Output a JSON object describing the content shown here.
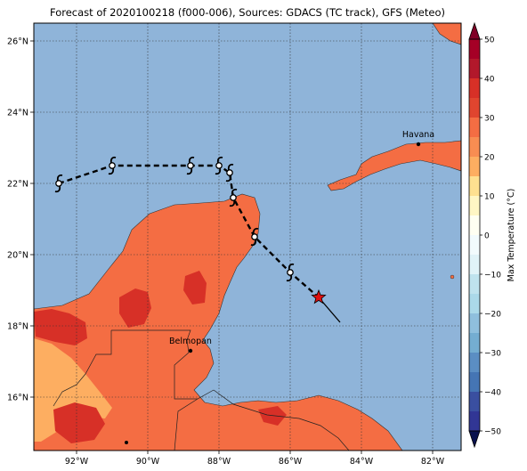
{
  "title": "Forecast of 2020100218 (f000-006), Sources: GDACS (TC track), GFS (Meteo)",
  "map": {
    "lon_range": [
      -93.2,
      -81.2
    ],
    "lat_range": [
      14.5,
      26.5
    ],
    "lon_ticks": [
      -92,
      -90,
      -88,
      -86,
      -84,
      -82
    ],
    "lat_ticks": [
      16,
      18,
      20,
      22,
      24,
      26
    ],
    "lon_tick_labels": [
      "92°W",
      "90°W",
      "88°W",
      "86°W",
      "84°W",
      "82°W"
    ],
    "lat_tick_labels": [
      "16°N",
      "18°N",
      "20°N",
      "22°N",
      "24°N",
      "26°N"
    ],
    "gridlines": true,
    "colors": {
      "ocean": "#8fb4d9",
      "land_base": "#f46d43",
      "land_warm": "#fdae61",
      "land_hot": "#d73027"
    }
  },
  "cities": [
    {
      "name": "Havana",
      "lon": -82.4,
      "lat": 23.1
    },
    {
      "name": "Belmopan",
      "lon": -88.8,
      "lat": 17.3
    }
  ],
  "track": {
    "points": [
      {
        "lon": -92.5,
        "lat": 22.0
      },
      {
        "lon": -91.0,
        "lat": 22.5
      },
      {
        "lon": -88.8,
        "lat": 22.5
      },
      {
        "lon": -88.0,
        "lat": 22.5
      },
      {
        "lon": -87.7,
        "lat": 22.3
      },
      {
        "lon": -87.6,
        "lat": 21.6
      },
      {
        "lon": -87.0,
        "lat": 20.5
      },
      {
        "lon": -86.0,
        "lat": 19.5
      },
      {
        "lon": -85.2,
        "lat": 18.8
      }
    ],
    "current": {
      "lon": -85.2,
      "lat": 18.8
    },
    "motion_end": {
      "lon": -84.6,
      "lat": 18.1
    },
    "symbol": "hurricane-symbol"
  },
  "colorbar": {
    "label": "Max Temperature (°C)",
    "ticks": [
      50,
      40,
      30,
      20,
      10,
      0,
      -10,
      -20,
      -30,
      -40,
      -50
    ],
    "bands": [
      {
        "from": 45,
        "to": 50,
        "color": "#a50026"
      },
      {
        "from": 40,
        "to": 45,
        "color": "#b2182b"
      },
      {
        "from": 35,
        "to": 40,
        "color": "#d73027"
      },
      {
        "from": 30,
        "to": 35,
        "color": "#e0452f"
      },
      {
        "from": 25,
        "to": 30,
        "color": "#f46d43"
      },
      {
        "from": 20,
        "to": 25,
        "color": "#f88d52"
      },
      {
        "from": 15,
        "to": 20,
        "color": "#fdae61"
      },
      {
        "from": 10,
        "to": 15,
        "color": "#fee090"
      },
      {
        "from": 5,
        "to": 10,
        "color": "#fff6c4"
      },
      {
        "from": 0,
        "to": 5,
        "color": "#fffff2"
      },
      {
        "from": -5,
        "to": 0,
        "color": "#f2fbfd"
      },
      {
        "from": -10,
        "to": -5,
        "color": "#e0f3f8"
      },
      {
        "from": -15,
        "to": -10,
        "color": "#bfe3ee"
      },
      {
        "from": -20,
        "to": -15,
        "color": "#abd9e9"
      },
      {
        "from": -25,
        "to": -20,
        "color": "#8fbfdd"
      },
      {
        "from": -30,
        "to": -25,
        "color": "#74add1"
      },
      {
        "from": -35,
        "to": -30,
        "color": "#5b8ec3"
      },
      {
        "from": -40,
        "to": -35,
        "color": "#4575b4"
      },
      {
        "from": -45,
        "to": -40,
        "color": "#3a4fa0"
      },
      {
        "from": -50,
        "to": -45,
        "color": "#313695"
      }
    ],
    "over_color": "#800026",
    "under_color": "#08104d"
  }
}
